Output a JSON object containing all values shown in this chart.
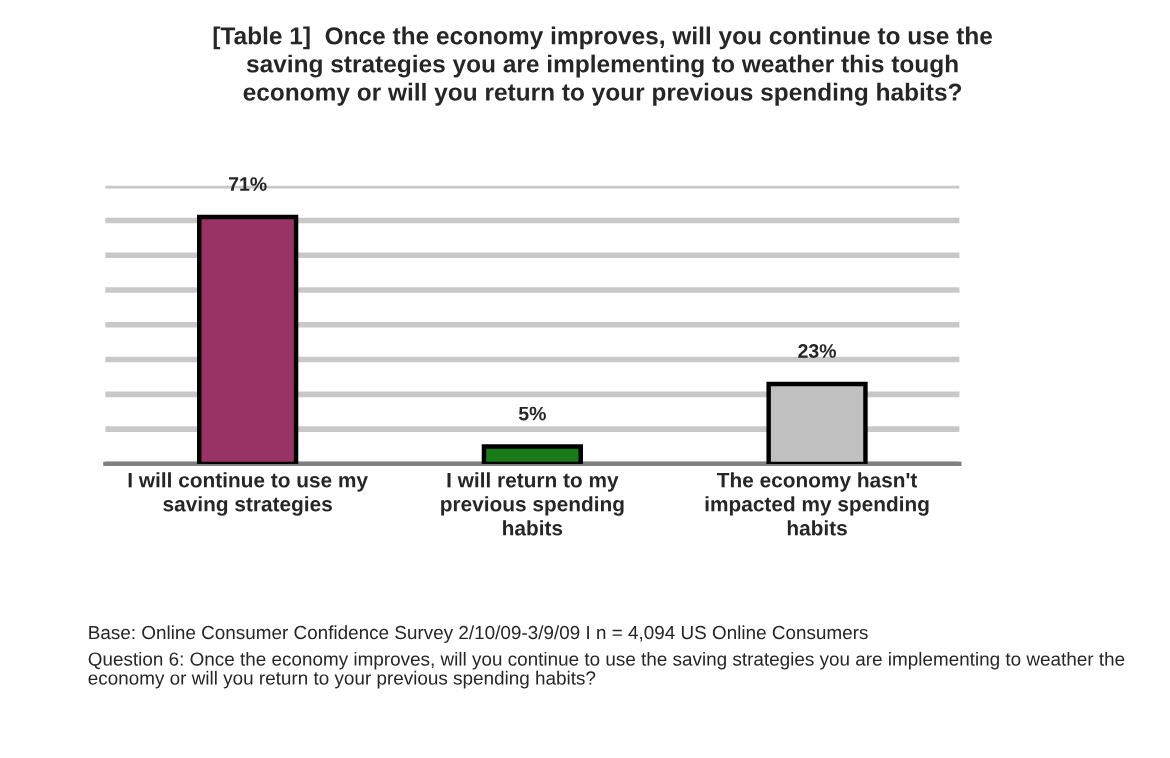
{
  "chart_data": {
    "type": "bar",
    "title": "[Table 1]  Once the economy improves, will you continue to use the saving strategies you are implementing to weather this tough economy or will you return to your previous spending habits?",
    "categories": [
      "I will continue to use my saving strategies",
      "I will return to my previous spending habits",
      "The economy hasn't impacted my spending habits"
    ],
    "values": [
      71,
      5,
      23
    ],
    "colors": [
      "#993366",
      "#1a7a1a",
      "#c0c0c0"
    ],
    "value_labels": [
      "71%",
      "5%",
      "23%"
    ],
    "ylim": [
      0,
      80
    ],
    "yticks": [
      {
        "value": 0,
        "label": null
      },
      {
        "value": 10,
        "label": null
      },
      {
        "value": 20,
        "label": null
      },
      {
        "value": 30,
        "label": null
      },
      {
        "value": 40,
        "label": null
      },
      {
        "value": 50,
        "label": null
      },
      {
        "value": 60,
        "label": null
      },
      {
        "value": 70,
        "label": null
      },
      {
        "value": 80,
        "label": null
      }
    ],
    "grid": "y",
    "tick_labels": "x",
    "annotations": [
      "Base: Online Consumer Confidence Survey 2/10/09-3/9/09 I n = 4,094 US Online Consumers",
      "Question 6: Once the economy improves, will you continue to use the saving strategies you are implementing to weather the economy or will you return to your previous spending habits?"
    ]
  }
}
